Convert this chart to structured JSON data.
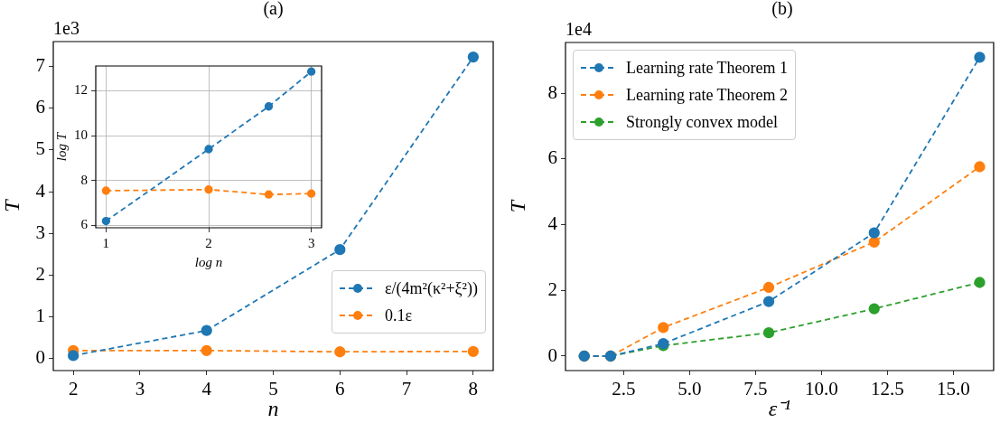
{
  "chart_data": [
    {
      "type": "line",
      "title": "(a)",
      "xlabel": "n",
      "ylabel": "T",
      "annotations": [
        "1e3"
      ],
      "x": [
        2,
        4,
        6,
        8
      ],
      "series": [
        {
          "name": "ε/(4m²(κ²+ξ²))",
          "color": "#1f77b4",
          "values": [
            0.07,
            0.67,
            2.61,
            7.23
          ]
        },
        {
          "name": "0.1ε",
          "color": "#ff7f0e",
          "values": [
            0.19,
            0.19,
            0.16,
            0.17
          ]
        }
      ],
      "xlim": [
        1.7,
        8.3
      ],
      "xticks": [
        2,
        3,
        4,
        5,
        6,
        7,
        8
      ],
      "ylim": [
        -0.29,
        7.6
      ],
      "yticks": [
        0,
        1,
        2,
        3,
        4,
        5,
        6,
        7
      ],
      "grid": false,
      "legend": "right",
      "marker": "circle",
      "line_style": "dashed"
    },
    {
      "type": "line",
      "xlabel": "log n",
      "ylabel": "log T",
      "x": [
        1,
        2,
        2.585,
        3
      ],
      "series": [
        {
          "color": "#1f77b4",
          "values": [
            6.2,
            9.4,
            11.3,
            12.85
          ]
        },
        {
          "color": "#ff7f0e",
          "values": [
            7.55,
            7.6,
            7.38,
            7.42
          ]
        }
      ],
      "xlim": [
        0.9,
        3.1
      ],
      "xticks": [
        1,
        2,
        3
      ],
      "ylim": [
        5.9,
        13.1
      ],
      "yticks": [
        6,
        8,
        10,
        12
      ],
      "grid": true,
      "legend": false,
      "marker": "circle",
      "line_style": "dashed"
    },
    {
      "type": "line",
      "title": "(b)",
      "xlabel": "ε⁻¹",
      "ylabel": "T",
      "annotations": [
        "1e4"
      ],
      "x": [
        1,
        2,
        4,
        8,
        12,
        16
      ],
      "series": [
        {
          "name": "Learning rate Theorem 1",
          "color": "#1f77b4",
          "values": [
            0,
            0,
            0.38,
            1.66,
            3.75,
            9.09
          ]
        },
        {
          "name": "Learning rate Theorem 2",
          "color": "#ff7f0e",
          "values": [
            0,
            0,
            0.87,
            2.09,
            3.47,
            5.76
          ]
        },
        {
          "name": "Strongly convex model",
          "color": "#2ca02c",
          "values": [
            0,
            0,
            0.32,
            0.71,
            1.44,
            2.24
          ]
        }
      ],
      "xlim": [
        0.29,
        16.53
      ],
      "xticks": [
        {
          "value": 2.5,
          "label": "2.5"
        },
        {
          "value": 5,
          "label": "5.0"
        },
        {
          "value": 7.5,
          "label": "7.5"
        },
        {
          "value": 10,
          "label": "10.0"
        },
        {
          "value": 12.5,
          "label": "12.5"
        },
        {
          "value": 15,
          "label": "15.0"
        }
      ],
      "ylim": [
        -0.44,
        9.54
      ],
      "yticks": [
        0,
        2,
        4,
        6,
        8
      ],
      "grid": false,
      "legend": "top left",
      "marker": "circle",
      "line_style": "dashed"
    }
  ]
}
